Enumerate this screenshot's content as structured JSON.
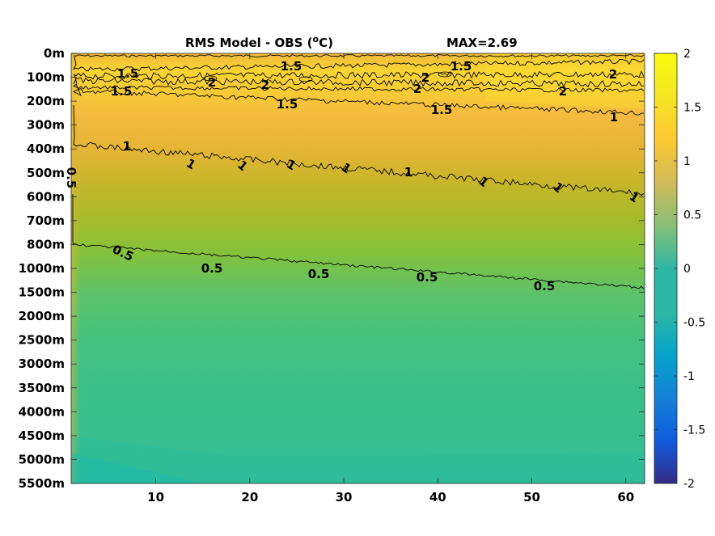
{
  "chart_data": {
    "type": "heatmap",
    "title": "RMS Model - OBS (",
    "title_sup": "o",
    "title_end": "C)",
    "annotation": "MAX=2.69",
    "x": {
      "ticks": [
        10,
        20,
        30,
        40,
        50,
        60
      ],
      "tick_labels": [
        "10",
        "20",
        "30",
        "40",
        "50",
        "60"
      ],
      "range": [
        1,
        62
      ]
    },
    "y": {
      "tick_labels": [
        "0m",
        "100m",
        "200m",
        "300m",
        "400m",
        "500m",
        "600m",
        "700m",
        "800m",
        "1000m",
        "1500m",
        "2000m",
        "2500m",
        "3000m",
        "3500m",
        "4000m",
        "4500m",
        "5000m",
        "5500m"
      ],
      "reversed": true
    },
    "colorbar": {
      "range": [
        -2,
        2
      ],
      "colormap": "parula",
      "ticks": [
        2,
        1.5,
        1,
        0.5,
        0,
        -0.5,
        -1,
        -1.5,
        -2
      ],
      "tick_labels": [
        "2",
        "1.5",
        "1",
        "0.5",
        "0",
        "-0.5",
        "-1",
        "-1.5",
        "-2"
      ]
    },
    "field_profile": {
      "depth_levels": [
        "0m",
        "100m",
        "200m",
        "300m",
        "400m",
        "500m",
        "600m",
        "700m",
        "800m",
        "1000m",
        "1500m",
        "2000m",
        "2500m",
        "3000m",
        "3500m",
        "4000m",
        "4500m",
        "5000m",
        "5500m"
      ],
      "rms_at_x1": [
        1.4,
        1.85,
        1.55,
        1.3,
        1.15,
        1.0,
        0.9,
        0.8,
        0.65,
        0.52,
        0.45,
        0.42,
        0.4,
        0.38,
        0.37,
        0.36,
        0.35,
        0.34,
        0.33
      ],
      "rms_at_x62": [
        1.4,
        2.05,
        1.95,
        1.5,
        1.35,
        1.2,
        1.0,
        0.85,
        0.7,
        0.5,
        0.45,
        0.42,
        0.4,
        0.39,
        0.38,
        0.37,
        0.37,
        0.36,
        0.36
      ]
    },
    "contour_levels": [
      0.5,
      1,
      1.5,
      2
    ],
    "contour_labels": [
      "1.5",
      "1.5",
      "1.5",
      "1.5",
      "1.5",
      "1.5",
      "2",
      "2",
      "2",
      "2",
      "2",
      "2",
      "1",
      "1",
      "1",
      "1",
      "1",
      "1",
      "1",
      "1",
      "1",
      "0.5",
      "0.5",
      "0.5",
      "0.5",
      "0.5",
      "0.5",
      "1"
    ],
    "grid": false,
    "legend": "none"
  }
}
